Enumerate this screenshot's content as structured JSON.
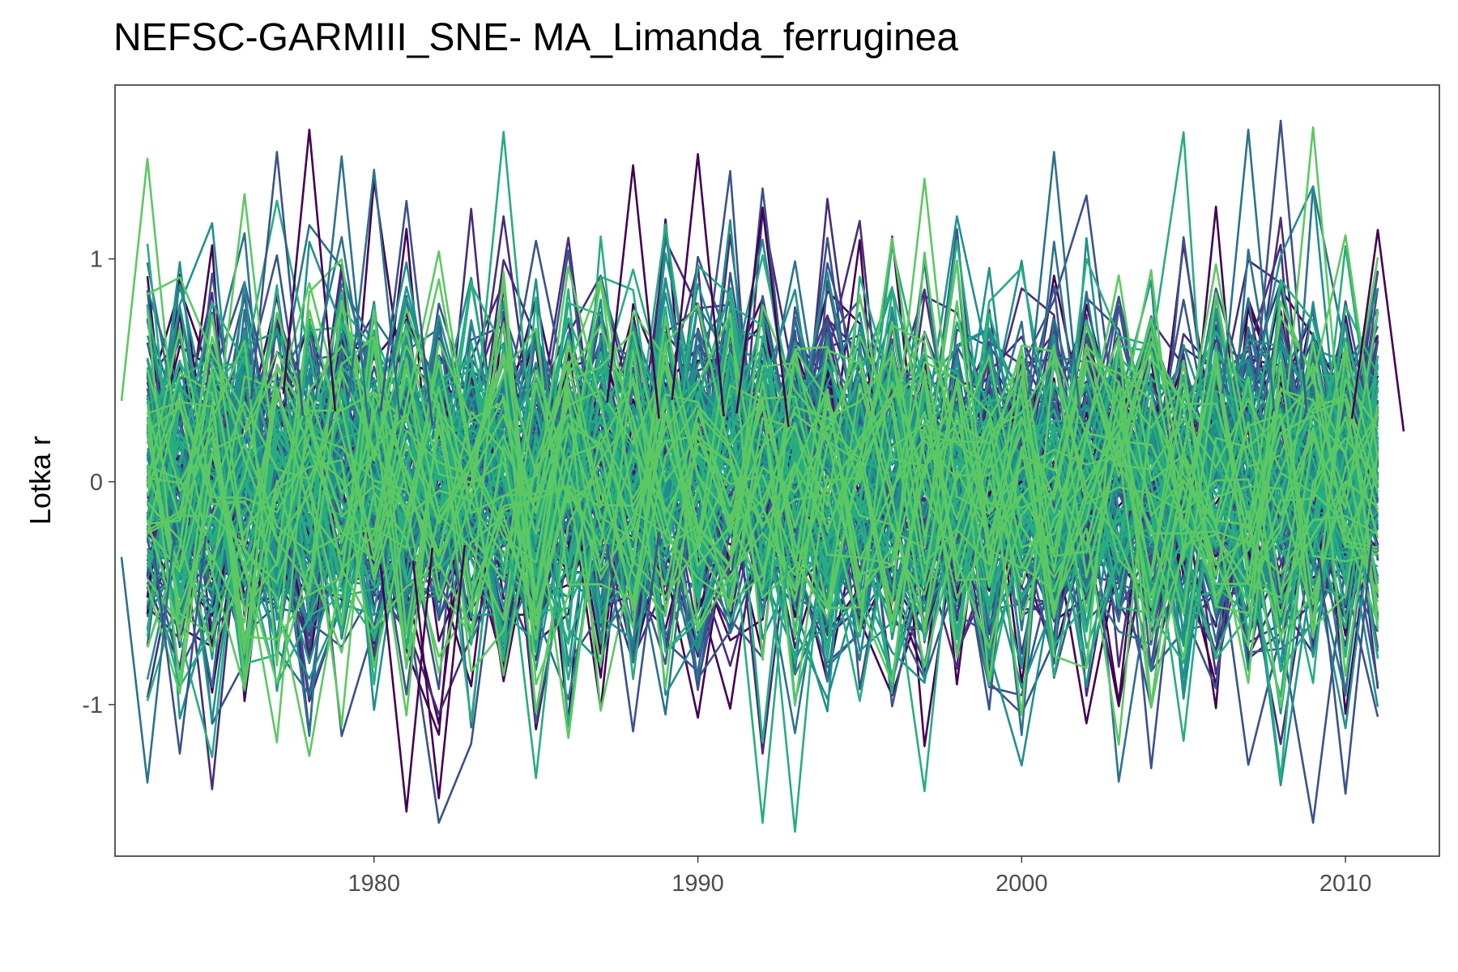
{
  "chart_data": {
    "type": "line",
    "title": "NEFSC-GARMIII_SNE- MA_Limanda_ferruginea",
    "xlabel": "",
    "ylabel": "Lotka r",
    "xlim": [
      1972,
      2012.9
    ],
    "ylim": [
      -1.68,
      1.78
    ],
    "x_ticks": [
      1980,
      1990,
      2000,
      2010
    ],
    "x_tick_labels": [
      "1980",
      "1990",
      "2000",
      "2010"
    ],
    "y_ticks": [
      -1,
      0,
      1
    ],
    "y_tick_labels": [
      "-1",
      "0",
      "1"
    ],
    "grid": false,
    "legend": "none",
    "x_start": 1973,
    "x_end": 2011,
    "series_count": 180,
    "series_spread_sd": 0.42,
    "palette": [
      "#440154",
      "#472d7b",
      "#3b528b",
      "#2c728e",
      "#21908d",
      "#27ad81",
      "#5dc863"
    ],
    "highlighted_series": [
      {
        "color": "#440154",
        "x": [
          1978,
          1981,
          1982,
          1988,
          1990,
          1992,
          2011
        ],
        "y": [
          1.58,
          -1.48,
          -1.42,
          1.42,
          1.47,
          1.23,
          1.13
        ]
      },
      {
        "color": "#3b528b",
        "x": [
          1974,
          1977,
          1981,
          1988,
          2008,
          2010
        ],
        "y": [
          -1.22,
          1.48,
          1.26,
          -1.12,
          1.62,
          -1.4
        ]
      },
      {
        "color": "#2c728e",
        "x": [
          1973,
          1979,
          1980,
          2001,
          2007
        ],
        "y": [
          -1.35,
          1.46,
          1.4,
          1.48,
          1.58
        ]
      },
      {
        "color": "#27ad81",
        "x": [
          1984,
          1985,
          1992,
          1993
        ],
        "y": [
          1.57,
          -1.33,
          -1.53,
          -1.57
        ]
      },
      {
        "color": "#5dc863",
        "x": [
          1973,
          1976,
          1986,
          1997,
          2009
        ],
        "y": [
          1.45,
          1.29,
          -1.15,
          1.36,
          1.59
        ]
      }
    ]
  }
}
